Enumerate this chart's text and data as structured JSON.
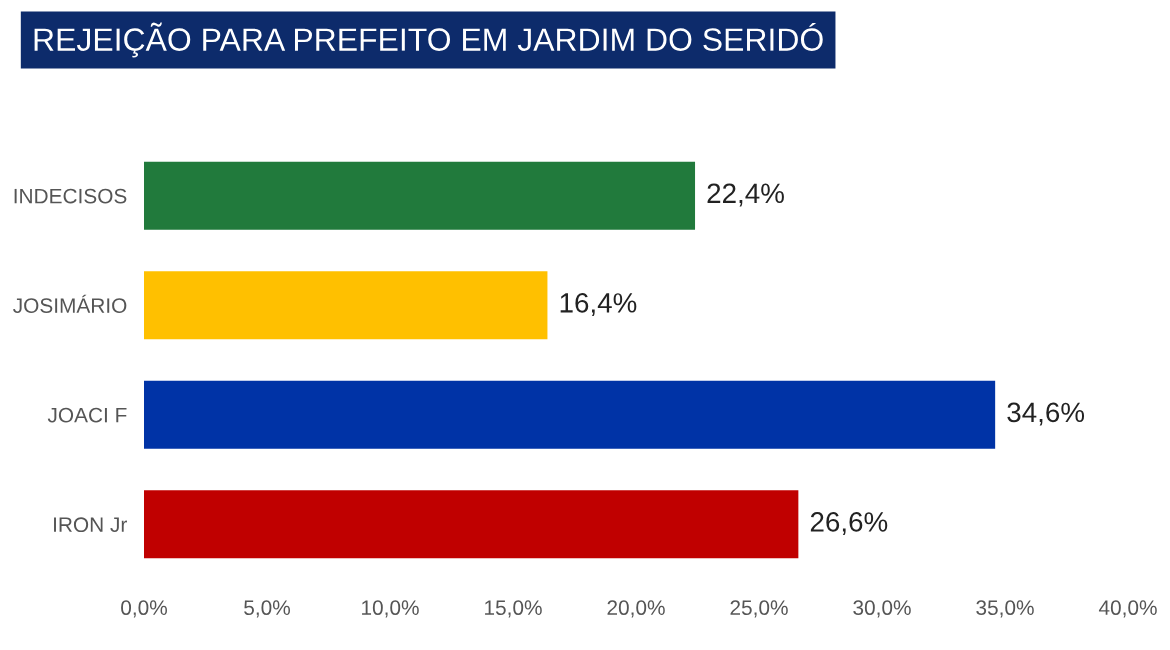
{
  "chart_data": {
    "type": "bar",
    "orientation": "horizontal",
    "title": "REJEIÇÃO PARA PREFEITO EM JARDIM DO SERIDÓ",
    "categories": [
      "INDECISOS",
      "JOSIMÁRIO",
      "JOACI F",
      "IRON Jr"
    ],
    "values": [
      22.4,
      16.4,
      34.6,
      26.6
    ],
    "colors": [
      "#217a3c",
      "#ffc000",
      "#0033a6",
      "#c00000"
    ],
    "value_labels": [
      "22,4%",
      "16,4%",
      "34,6%",
      "26,6%"
    ],
    "xlim": [
      0,
      40
    ],
    "xticks": [
      {
        "value": 0,
        "label": "0,0%"
      },
      {
        "value": 5,
        "label": "5,0%"
      },
      {
        "value": 10,
        "label": "10,0%"
      },
      {
        "value": 15,
        "label": "15,0%"
      },
      {
        "value": 20,
        "label": "20,0%"
      },
      {
        "value": 25,
        "label": "25,0%"
      },
      {
        "value": 30,
        "label": "30,0%"
      },
      {
        "value": 35,
        "label": "35,0%"
      },
      {
        "value": 40,
        "label": "40,0%"
      }
    ],
    "grid": false,
    "legend": false
  }
}
